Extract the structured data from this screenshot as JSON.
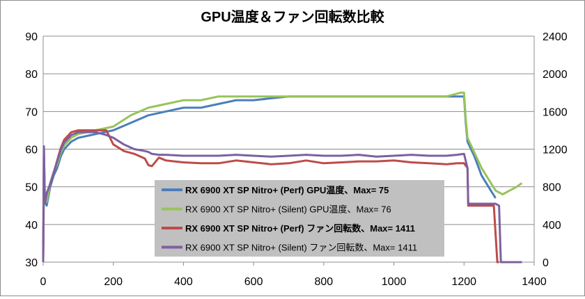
{
  "chart_data": {
    "type": "line",
    "title": "GPU温度＆ファン回転数比較",
    "xlim": [
      0,
      1400
    ],
    "x_ticks": [
      "0",
      "200",
      "400",
      "600",
      "800",
      "1000",
      "1200",
      "1400"
    ],
    "ylim_left": [
      30,
      90
    ],
    "y_left_ticks": [
      "30",
      "40",
      "50",
      "60",
      "70",
      "80",
      "90"
    ],
    "ylim_right": [
      0,
      2400
    ],
    "y_right_ticks": [
      "0",
      "400",
      "800",
      "1200",
      "1600",
      "2000",
      "2400"
    ],
    "grid": "horizontal",
    "legend_placement": "center-bottom",
    "series": [
      {
        "name": "RX 6900 XT SP Nitro+ (Perf) GPU温度、Max= 75",
        "axis": "left",
        "color": "#4a7ebb",
        "bold": true,
        "x": [
          0,
          2,
          5,
          10,
          20,
          30,
          40,
          50,
          60,
          80,
          100,
          150,
          200,
          250,
          300,
          350,
          400,
          450,
          500,
          550,
          600,
          700,
          800,
          900,
          1000,
          1100,
          1150,
          1190,
          1200,
          1205,
          1210,
          1230,
          1250,
          1270,
          1290
        ],
        "y": [
          31,
          50,
          46,
          45,
          50,
          53,
          55,
          58,
          60,
          62,
          63,
          64,
          65,
          67,
          69,
          70,
          71,
          71,
          72,
          73,
          73,
          74,
          74,
          74,
          74,
          74,
          74,
          74,
          74,
          67,
          62,
          58,
          53,
          50,
          47
        ]
      },
      {
        "name": "RX 6900 XT SP Nitro+ (Silent) GPU温度、Max= 76",
        "axis": "left",
        "color": "#98c35a",
        "bold": false,
        "x": [
          0,
          2,
          5,
          10,
          20,
          30,
          40,
          50,
          60,
          80,
          100,
          150,
          200,
          250,
          300,
          350,
          400,
          450,
          500,
          550,
          600,
          700,
          800,
          900,
          1000,
          1100,
          1150,
          1190,
          1200,
          1205,
          1210,
          1230,
          1250,
          1270,
          1290,
          1310,
          1330,
          1350,
          1365
        ],
        "y": [
          31,
          50,
          46,
          46,
          51,
          54,
          56,
          59,
          61,
          63,
          64,
          65,
          66,
          69,
          71,
          72,
          73,
          73,
          74,
          74,
          74,
          74,
          74,
          74,
          74,
          74,
          74,
          75,
          75,
          68,
          63,
          59,
          55,
          52,
          49,
          48,
          49,
          50,
          51
        ]
      },
      {
        "name": "RX 6900 XT SP Nitro+ (Perf) ファン回転数、Max= 1411",
        "axis": "right",
        "color": "#be4b48",
        "bold": true,
        "x": [
          0,
          2,
          5,
          10,
          20,
          30,
          40,
          50,
          60,
          80,
          100,
          150,
          180,
          200,
          230,
          260,
          290,
          300,
          310,
          330,
          350,
          400,
          450,
          500,
          550,
          600,
          650,
          700,
          750,
          800,
          850,
          900,
          950,
          1000,
          1050,
          1100,
          1150,
          1180,
          1200,
          1210,
          1212,
          1230,
          1260,
          1285,
          1290,
          1295,
          1300
        ],
        "y": [
          0,
          1230,
          620,
          730,
          830,
          950,
          1080,
          1210,
          1300,
          1380,
          1400,
          1400,
          1400,
          1250,
          1180,
          1150,
          1100,
          1030,
          1020,
          1110,
          1080,
          1060,
          1050,
          1050,
          1080,
          1060,
          1040,
          1050,
          1080,
          1050,
          1060,
          1070,
          1070,
          1080,
          1060,
          1050,
          1040,
          1050,
          1050,
          1000,
          600,
          600,
          600,
          600,
          300,
          0,
          0
        ]
      },
      {
        "name": "RX 6900 XT SP Nitro+ (Silent) ファン回転数、Max= 1411",
        "axis": "right",
        "color": "#7d60a0",
        "bold": false,
        "x": [
          0,
          2,
          5,
          10,
          20,
          30,
          40,
          50,
          60,
          80,
          100,
          150,
          180,
          200,
          230,
          260,
          290,
          300,
          310,
          330,
          350,
          400,
          450,
          500,
          550,
          600,
          650,
          700,
          750,
          800,
          850,
          900,
          950,
          1000,
          1050,
          1100,
          1150,
          1180,
          1200,
          1210,
          1212,
          1230,
          1260,
          1290,
          1300,
          1305,
          1365
        ],
        "y": [
          0,
          1230,
          620,
          730,
          830,
          950,
          1070,
          1190,
          1270,
          1350,
          1380,
          1380,
          1350,
          1320,
          1250,
          1200,
          1180,
          1170,
          1150,
          1140,
          1140,
          1130,
          1130,
          1130,
          1140,
          1130,
          1120,
          1130,
          1140,
          1130,
          1130,
          1140,
          1120,
          1130,
          1140,
          1130,
          1130,
          1140,
          1150,
          1000,
          620,
          620,
          620,
          620,
          600,
          0,
          0
        ]
      }
    ]
  }
}
